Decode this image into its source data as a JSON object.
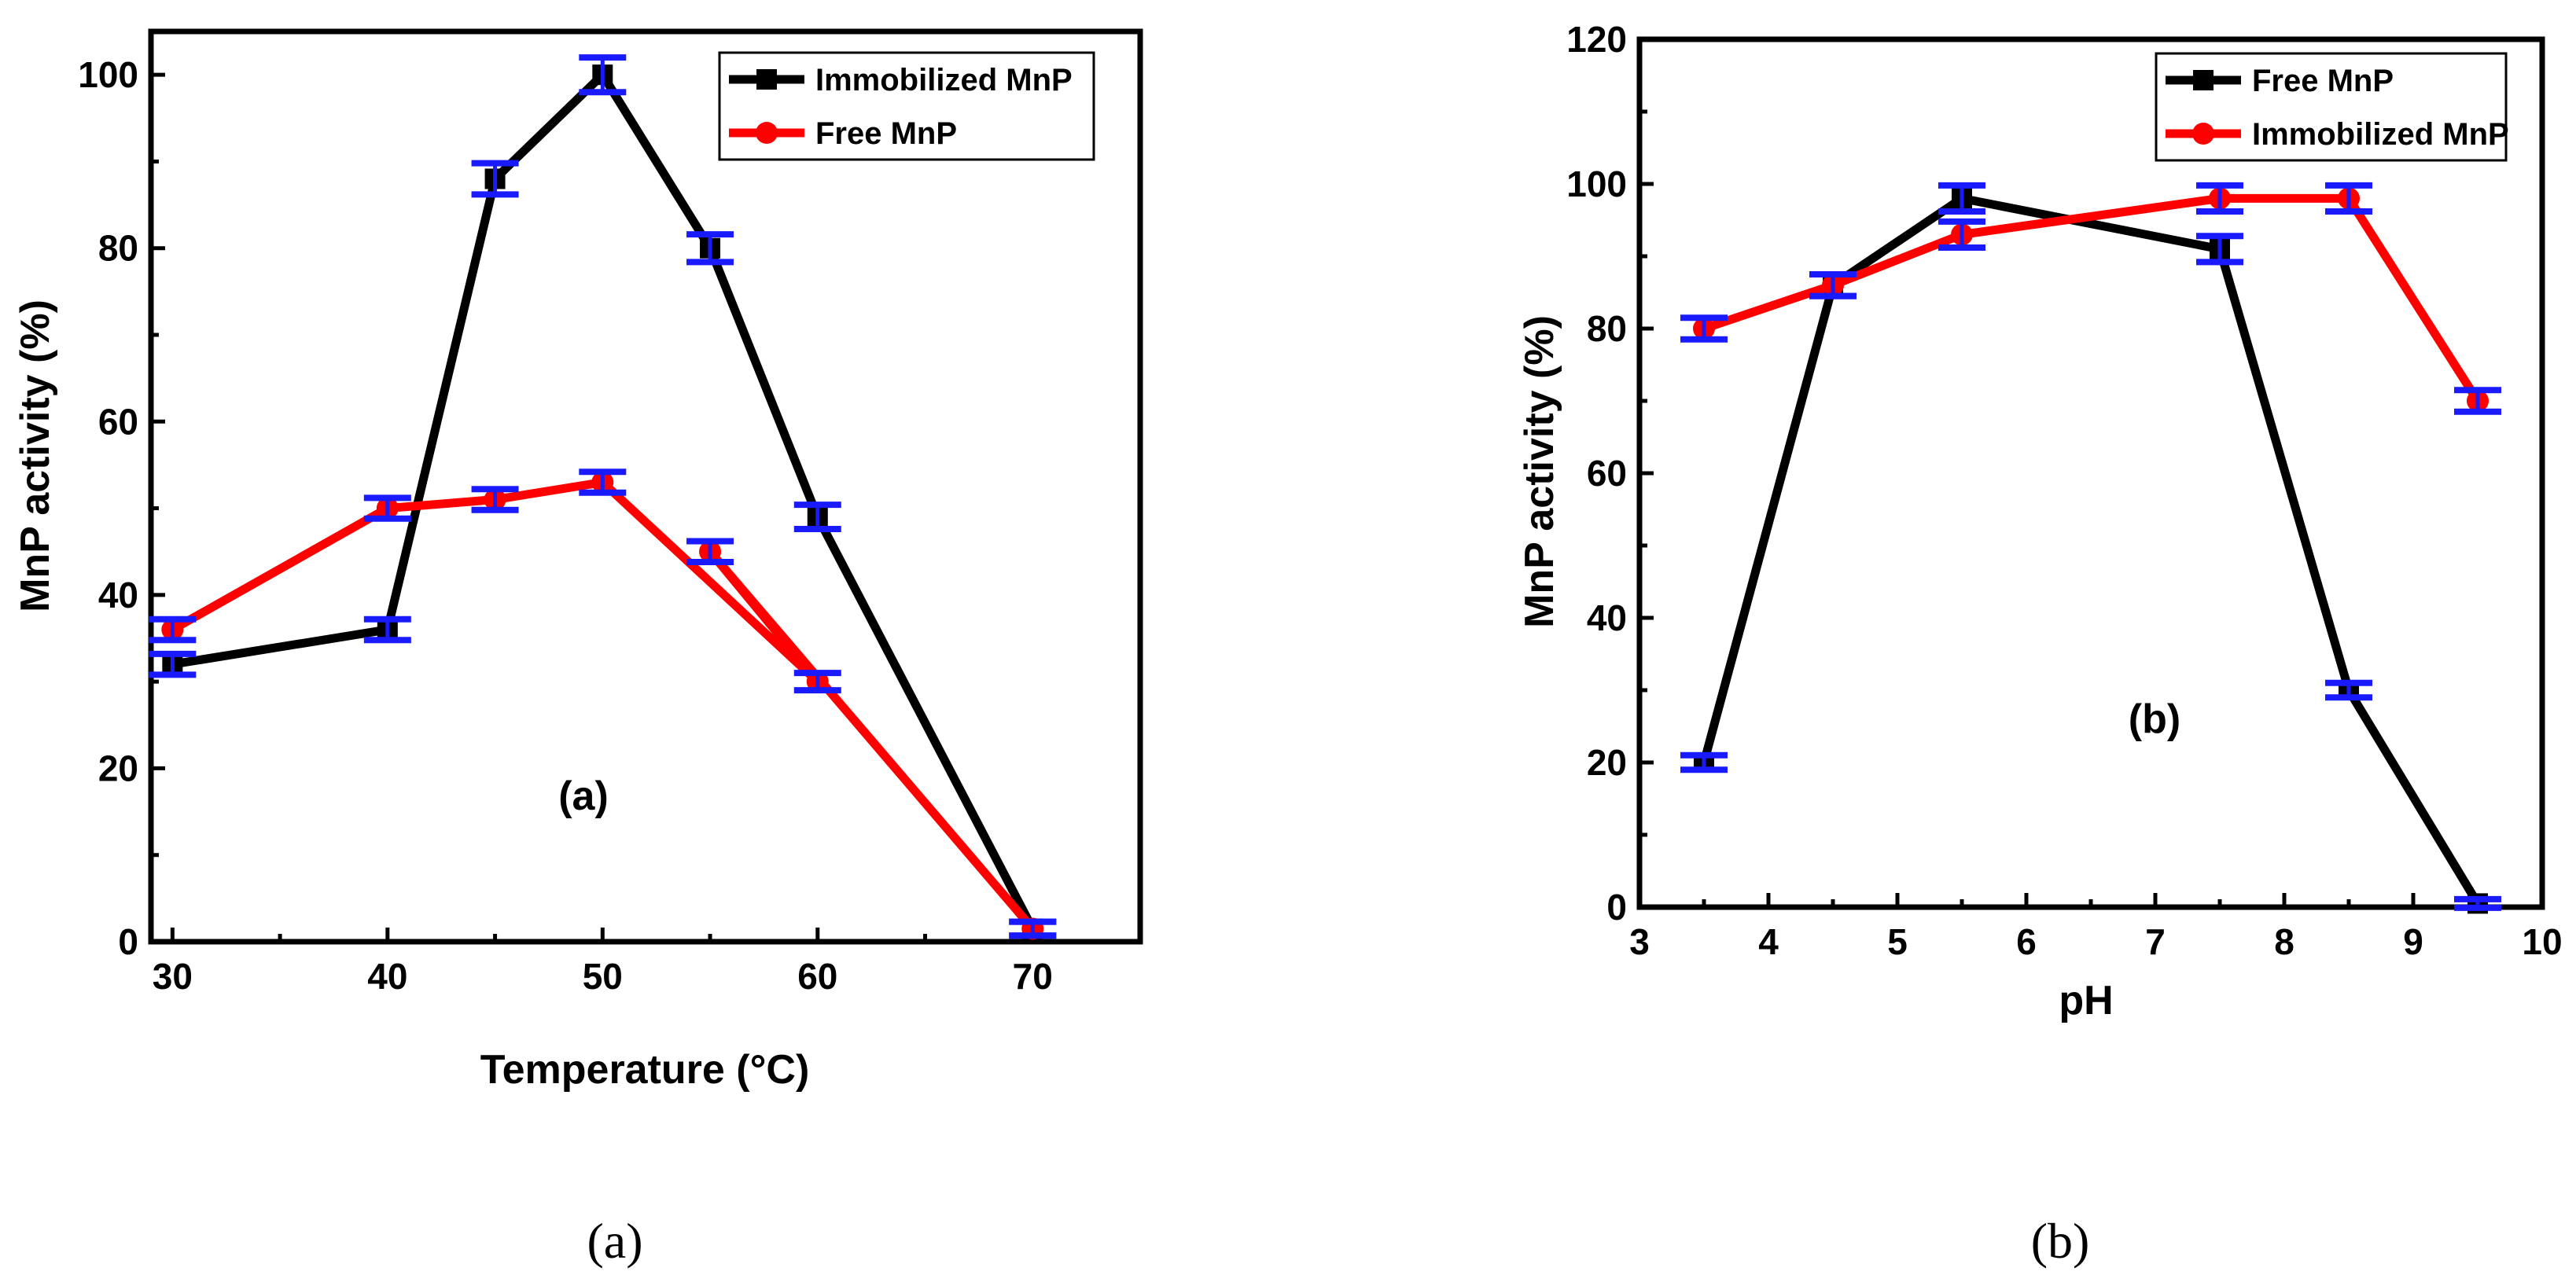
{
  "chart_data": [
    {
      "type": "line",
      "title": "",
      "xlabel": "Temperature (°C)",
      "ylabel": "MnP activity (%)",
      "xlim": [
        29,
        75
      ],
      "ylim": [
        0,
        105
      ],
      "xticks": [
        "30",
        "40",
        "50",
        "60",
        "70"
      ],
      "yticks": [
        "0",
        "20",
        "40",
        "60",
        "80",
        "100"
      ],
      "legend_position": "top-right",
      "annotation": "(a)",
      "caption": "(a)",
      "series": [
        {
          "name": "Immobilized MnP",
          "color": "#000000",
          "marker": "square",
          "x": [
            30,
            40,
            45,
            50,
            55,
            60,
            70
          ],
          "y": [
            32,
            36,
            88,
            100,
            80,
            49,
            1.5
          ],
          "err": [
            1.2,
            1.2,
            1.8,
            2.0,
            1.6,
            1.4,
            0.8
          ]
        },
        {
          "name": "Free MnP",
          "color": "#ff0000",
          "marker": "circle",
          "x": [
            30,
            40,
            45,
            50,
            60,
            55,
            70
          ],
          "y": [
            36,
            50,
            51,
            53,
            30,
            45,
            1.5
          ],
          "err": [
            1.2,
            1.2,
            1.2,
            1.2,
            1.0,
            1.2,
            0.8
          ]
        }
      ],
      "error_bar_color": "#1a1aff"
    },
    {
      "type": "line",
      "title": "",
      "xlabel": "pH",
      "ylabel": "MnP activity (%)",
      "xlim": [
        3,
        10
      ],
      "ylim": [
        0,
        120
      ],
      "xticks": [
        "3",
        "4",
        "5",
        "6",
        "7",
        "8",
        "9",
        "10"
      ],
      "yticks": [
        "0",
        "20",
        "40",
        "60",
        "80",
        "100",
        "120"
      ],
      "legend_position": "top-right",
      "annotation": "(b)",
      "caption": "(b)",
      "series": [
        {
          "name": "Free MnP",
          "color": "#000000",
          "marker": "square",
          "x": [
            3.5,
            4.5,
            5.5,
            7.5,
            8.5,
            9.5
          ],
          "y": [
            20,
            86,
            98,
            91,
            30,
            0.5
          ],
          "err": [
            1.0,
            1.5,
            1.8,
            1.8,
            1.0,
            0.6
          ]
        },
        {
          "name": "Immobilized MnP",
          "color": "#ff0000",
          "marker": "circle",
          "x": [
            3.5,
            4.5,
            5.5,
            7.5,
            8.5,
            9.5
          ],
          "y": [
            80,
            86,
            93,
            98,
            98,
            70
          ],
          "err": [
            1.5,
            1.5,
            1.8,
            1.8,
            1.8,
            1.5
          ]
        }
      ],
      "error_bar_color": "#1a1aff"
    }
  ]
}
